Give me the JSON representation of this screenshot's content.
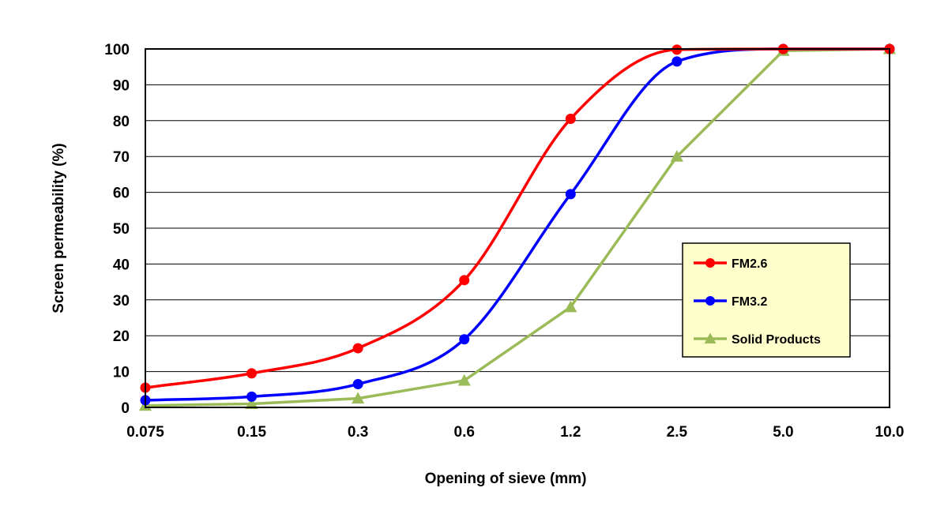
{
  "chart_data": {
    "type": "line",
    "title": "",
    "xlabel": "Opening of sieve (mm)",
    "ylabel": "Screen permeability (%)",
    "categories": [
      "0.075",
      "0.15",
      "0.3",
      "0.6",
      "1.2",
      "2.5",
      "5.0",
      "10.0"
    ],
    "y_ticks": [
      "0",
      "10",
      "20",
      "30",
      "40",
      "50",
      "60",
      "70",
      "80",
      "90",
      "100"
    ],
    "ylim": [
      0,
      100
    ],
    "grid": true,
    "legend_position": "right",
    "series": [
      {
        "name": "FM2.6",
        "color": "#ff0000",
        "marker": "circle",
        "smooth": true,
        "values": [
          5.5,
          9.5,
          16.5,
          35.5,
          80.5,
          99.8,
          100,
          100
        ]
      },
      {
        "name": "FM3.2",
        "color": "#0000ff",
        "marker": "circle",
        "smooth": true,
        "values": [
          2,
          3,
          6.5,
          19,
          59.5,
          96.5,
          100,
          100
        ]
      },
      {
        "name": "Solid Products",
        "color": "#9bbb59",
        "marker": "triangle",
        "smooth": false,
        "values": [
          0.5,
          1,
          2.5,
          7.5,
          28,
          70,
          99.5,
          100
        ]
      }
    ]
  }
}
